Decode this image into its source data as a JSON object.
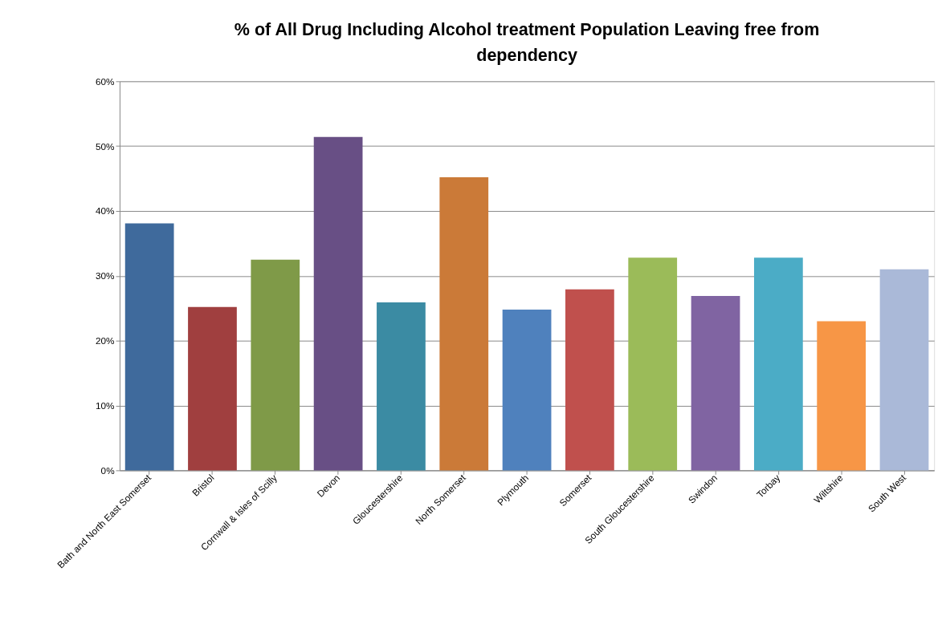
{
  "chart_data": {
    "type": "bar",
    "title": "% of All Drug Including Alcohol  treatment Population Leaving free from dependency",
    "categories": [
      "Bath and North East Somerset",
      "Bristol",
      "Cornwall & Isles of Scilly",
      "Devon",
      "Gloucestershire",
      "North Somerset",
      "Plymouth",
      "Somerset",
      "South Gloucestershire",
      "Swindon",
      "Torbay",
      "Wiltshire",
      "South West"
    ],
    "values": [
      38.1,
      25.2,
      32.5,
      51.4,
      25.9,
      45.2,
      24.8,
      27.9,
      32.8,
      26.9,
      32.8,
      23.0,
      31.0
    ],
    "colors": [
      "#3f6a9c",
      "#a03f3f",
      "#7f9a48",
      "#684f85",
      "#3b8ba3",
      "#cb7a38",
      "#4f81bd",
      "#c0504d",
      "#9bbb59",
      "#8064a2",
      "#4bacc6",
      "#f79646",
      "#aab9d8"
    ],
    "ylim": [
      0,
      60
    ],
    "yticks": [
      {
        "value": 0,
        "label": "0%"
      },
      {
        "value": 10,
        "label": "10%"
      },
      {
        "value": 20,
        "label": "20%"
      },
      {
        "value": 30,
        "label": "30%"
      },
      {
        "value": 40,
        "label": "40%"
      },
      {
        "value": 50,
        "label": "50%"
      },
      {
        "value": 60,
        "label": "60%"
      }
    ],
    "grid": "y"
  }
}
